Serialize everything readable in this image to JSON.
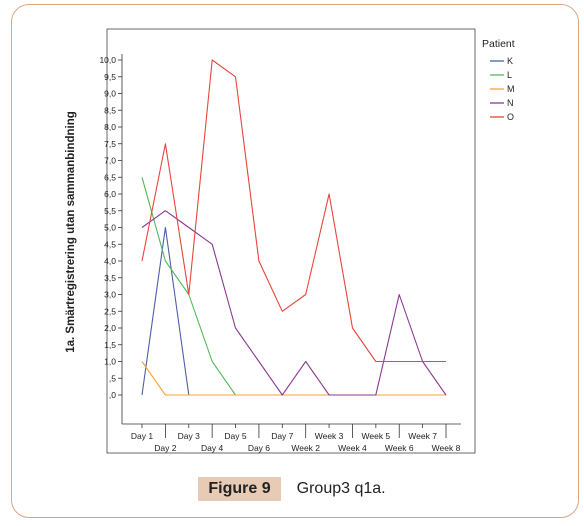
{
  "chart_data": {
    "type": "line",
    "ylabel": "1a. Smärtregistrering utan sammanbindning",
    "xlabel": "",
    "ylim": [
      0,
      10
    ],
    "yticks": [
      "10,0",
      "9,5",
      "9,0",
      "8,5",
      "8,0",
      "7,5",
      "7,0",
      "6,5",
      "6,0",
      "5,5",
      "5,0",
      "4,5",
      "4,0",
      "3,5",
      "3,0",
      "2,5",
      "2,0",
      "1,5",
      "1,0",
      ",5",
      ",0"
    ],
    "categories": [
      "Day 1",
      "Day 2",
      "Day 3",
      "Day 4",
      "Day 5",
      "Day 6",
      "Day 7",
      "Week 2",
      "Week 3",
      "Week 4",
      "Week 5",
      "Week 6",
      "Week 7",
      "Week 8"
    ],
    "legend_title": "Patient",
    "legend_position": "right",
    "series": [
      {
        "name": "K",
        "color": "#4d5fa8",
        "values": [
          0,
          5.0,
          0,
          null,
          null,
          null,
          null,
          null,
          null,
          null,
          null,
          null,
          null,
          null
        ]
      },
      {
        "name": "L",
        "color": "#55b85a",
        "values": [
          6.5,
          4.0,
          3.0,
          1.0,
          0,
          0,
          0,
          0,
          0,
          0,
          0,
          0,
          0,
          0
        ]
      },
      {
        "name": "M",
        "color": "#f4a338",
        "values": [
          1.0,
          0,
          0,
          0,
          0,
          0,
          0,
          0,
          0,
          0,
          0,
          0,
          0,
          0
        ]
      },
      {
        "name": "N",
        "color": "#8a3a92",
        "values": [
          5.0,
          5.5,
          5.0,
          4.5,
          2.0,
          1.0,
          0,
          1.0,
          0,
          0,
          0,
          3.0,
          1.0,
          0
        ]
      },
      {
        "name": "O",
        "color": "#e8453c",
        "values": [
          4.0,
          7.5,
          3.0,
          10.0,
          9.5,
          4.0,
          2.5,
          3.0,
          6.0,
          2.0,
          1.0,
          1.0,
          1.0,
          1.0
        ]
      }
    ]
  },
  "caption": {
    "tag": "Figure 9",
    "text": "Group3  q1a."
  }
}
